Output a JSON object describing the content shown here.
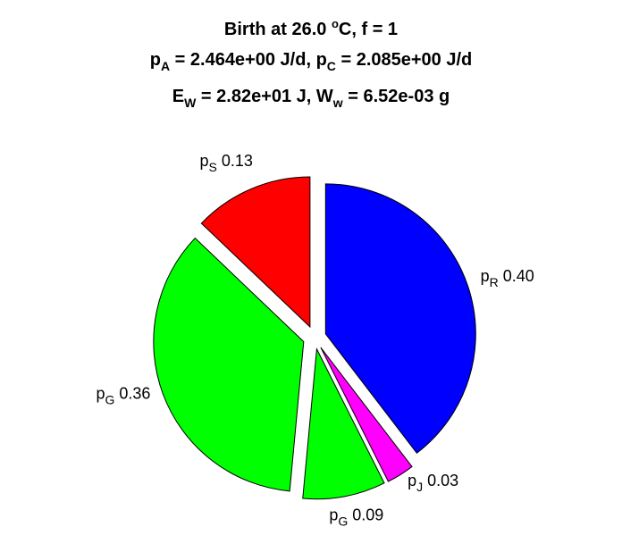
{
  "title": {
    "line1": {
      "main": "Birth at 26.0 ",
      "sup": "o",
      "rest": "C, f = 1"
    },
    "line2": {
      "p1": "p",
      "s1": "A",
      "m1": " = 2.464e+00 J/d, ",
      "p2": "p",
      "s2": "C",
      "m2": " = 2.085e+00 J/d"
    },
    "line3": {
      "p1": "E",
      "s1": "W",
      "m1": " = 2.82e+01 J, ",
      "p2": "W",
      "s2": "w",
      "m2": " = 6.52e-03 g"
    }
  },
  "chart_data": {
    "type": "pie",
    "exploded": true,
    "slices": [
      {
        "label": "p",
        "sub": "R",
        "value_text": "0.40",
        "value": 0.4,
        "color": "#0000ff"
      },
      {
        "label": "p",
        "sub": "J",
        "value_text": "0.03",
        "value": 0.03,
        "color": "#ff00ff"
      },
      {
        "label": "p",
        "sub": "G",
        "value_text": "0.09",
        "value": 0.09,
        "color": "#00ff00"
      },
      {
        "label": "p",
        "sub": "G",
        "value_text": "0.36",
        "value": 0.36,
        "color": "#00ff00"
      },
      {
        "label": "p",
        "sub": "S",
        "value_text": "0.13",
        "value": 0.13,
        "color": "#ff0000"
      }
    ]
  }
}
